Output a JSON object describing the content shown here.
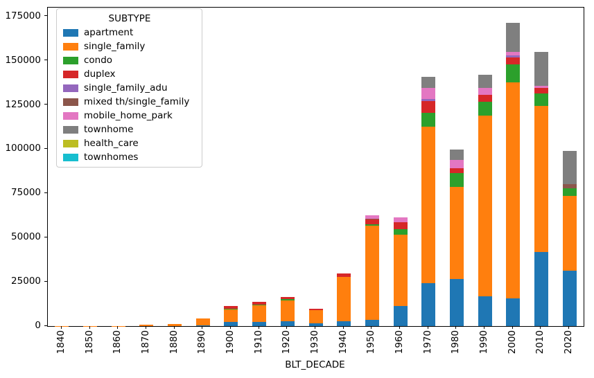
{
  "figure": {
    "x_axis_title": "BLT_DECADE",
    "legend_title": "SUBTYPE"
  },
  "chart_data": {
    "type": "bar",
    "stacked": true,
    "title": "",
    "xlabel": "BLT_DECADE",
    "ylabel": "",
    "legend_title": "SUBTYPE",
    "legend_position": "upper left",
    "grid": false,
    "ylim": [
      0,
      180000
    ],
    "yticks": [
      0,
      25000,
      50000,
      75000,
      100000,
      125000,
      150000,
      175000
    ],
    "categories": [
      "1840",
      "1850",
      "1860",
      "1870",
      "1880",
      "1890",
      "1900",
      "1910",
      "1920",
      "1930",
      "1940",
      "1950",
      "1960",
      "1970",
      "1980",
      "1990",
      "2000",
      "2010",
      "2020"
    ],
    "series": [
      {
        "name": "apartment",
        "color": "#1f77b4",
        "values": [
          0,
          0,
          0,
          0,
          0,
          250,
          2200,
          2350,
          2600,
          1550,
          2600,
          3500,
          11400,
          24400,
          26800,
          17000,
          15500,
          41800,
          31500
        ]
      },
      {
        "name": "single_family",
        "color": "#ff7f0e",
        "values": [
          50,
          100,
          200,
          600,
          1050,
          3950,
          7300,
          9500,
          11700,
          7550,
          25200,
          53400,
          40400,
          88200,
          52000,
          102100,
          122100,
          82500,
          42000
        ]
      },
      {
        "name": "condo",
        "color": "#2ca02c",
        "values": [
          0,
          0,
          0,
          0,
          0,
          0,
          300,
          300,
          1050,
          0,
          0,
          500,
          3100,
          7800,
          7800,
          7800,
          10200,
          7200,
          4200
        ]
      },
      {
        "name": "duplex",
        "color": "#d62728",
        "values": [
          0,
          0,
          0,
          0,
          0,
          0,
          1500,
          1400,
          1050,
          700,
          1900,
          3000,
          3900,
          6900,
          2600,
          3900,
          4200,
          3200,
          0
        ]
      },
      {
        "name": "single_family_adu",
        "color": "#9467bd",
        "values": [
          0,
          0,
          0,
          0,
          0,
          0,
          0,
          0,
          0,
          0,
          0,
          0,
          0,
          1200,
          0,
          0,
          1000,
          0,
          0
        ]
      },
      {
        "name": "mixed th/single_family",
        "color": "#8c564b",
        "values": [
          0,
          0,
          0,
          0,
          0,
          0,
          0,
          0,
          0,
          0,
          0,
          400,
          0,
          0,
          0,
          0,
          0,
          0,
          2600
        ]
      },
      {
        "name": "mobile_home_park",
        "color": "#e377c2",
        "values": [
          0,
          0,
          0,
          0,
          0,
          0,
          0,
          0,
          0,
          0,
          0,
          1800,
          2600,
          6300,
          4600,
          3900,
          1950,
          1100,
          0
        ]
      },
      {
        "name": "townhome",
        "color": "#7f7f7f",
        "values": [
          0,
          0,
          0,
          0,
          0,
          0,
          0,
          0,
          0,
          0,
          0,
          0,
          0,
          6200,
          6100,
          7200,
          16500,
          19100,
          18600
        ]
      },
      {
        "name": "health_care",
        "color": "#bcbd22",
        "values": [
          0,
          0,
          0,
          0,
          0,
          0,
          0,
          0,
          0,
          0,
          0,
          0,
          0,
          0,
          0,
          0,
          0,
          0,
          0
        ]
      },
      {
        "name": "townhomes",
        "color": "#17becf",
        "values": [
          0,
          0,
          0,
          0,
          0,
          0,
          0,
          0,
          0,
          0,
          0,
          0,
          0,
          0,
          0,
          0,
          0,
          0,
          0
        ]
      }
    ]
  }
}
